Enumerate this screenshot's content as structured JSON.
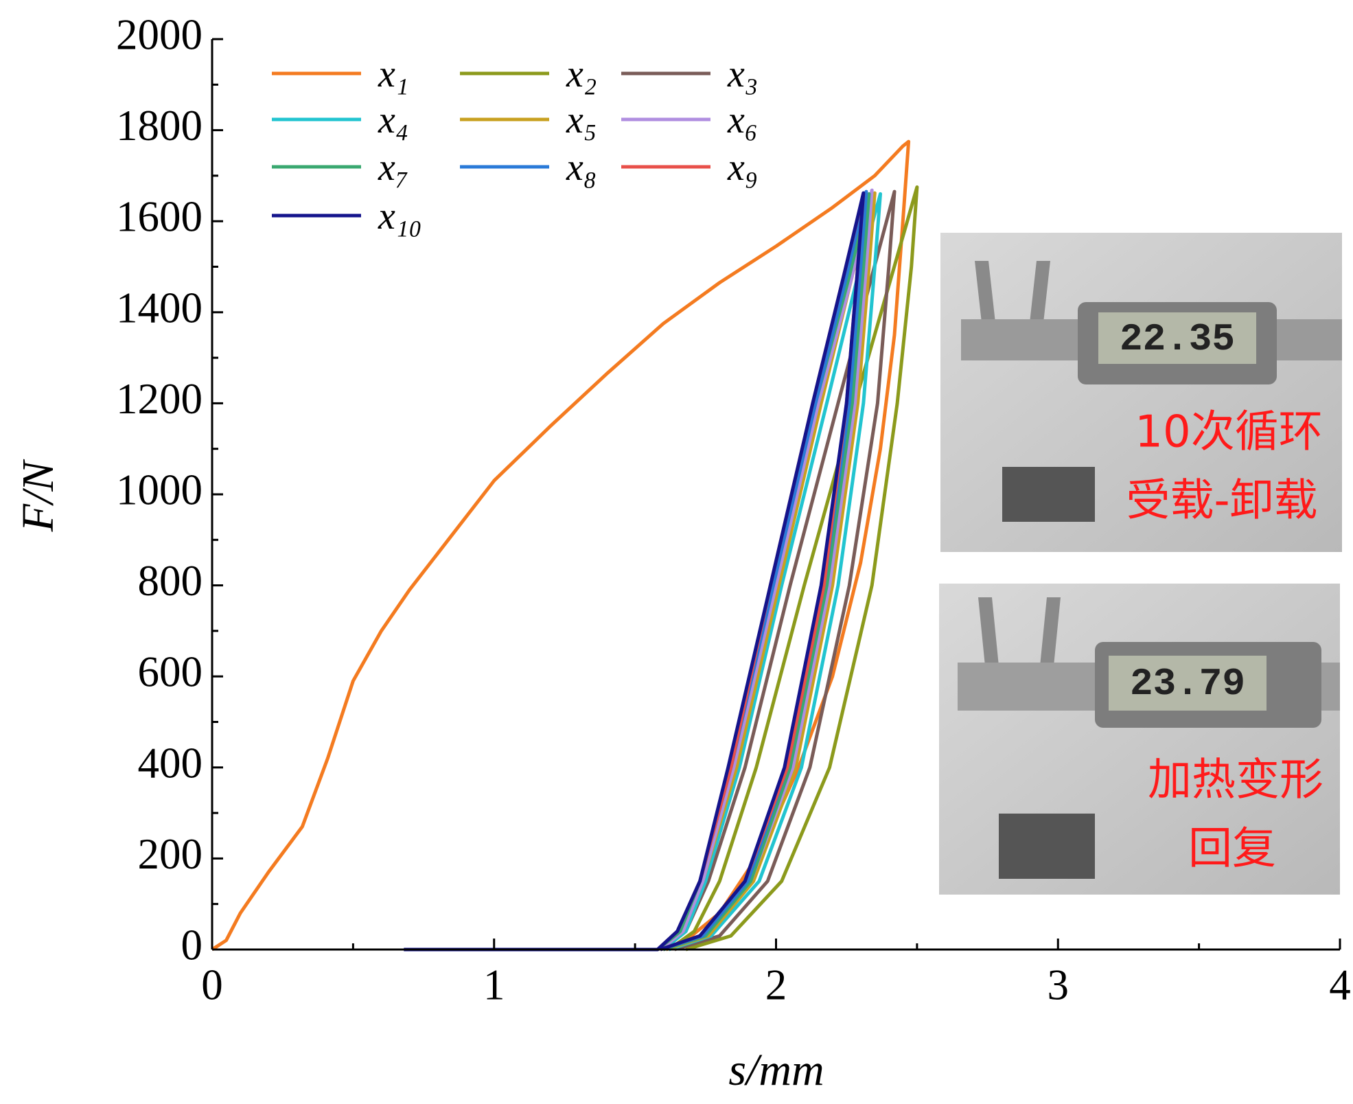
{
  "chart_data": {
    "type": "line",
    "xlabel": "s/mm",
    "ylabel": "F/N",
    "xlim": [
      0,
      4
    ],
    "xticks": [
      0,
      1,
      2,
      3,
      4
    ],
    "ylim": [
      0,
      2000
    ],
    "yticks": [
      0,
      200,
      400,
      600,
      800,
      1000,
      1200,
      1400,
      1600,
      1800,
      2000
    ],
    "legend": "upper-left",
    "series": [
      {
        "name": "x₁",
        "color": "#f47b20",
        "x": [
          0,
          0.05,
          0.1,
          0.2,
          0.32,
          0.41,
          0.5,
          0.6,
          0.7,
          0.85,
          1.0,
          1.2,
          1.4,
          1.6,
          1.8,
          2.0,
          2.2,
          2.35,
          2.45,
          2.47,
          2.45,
          2.42,
          2.37,
          2.3,
          2.2,
          2.08,
          1.95,
          1.8,
          1.68,
          1.6
        ],
        "values": [
          0,
          20,
          80,
          170,
          270,
          420,
          590,
          700,
          790,
          910,
          1030,
          1150,
          1265,
          1375,
          1465,
          1545,
          1630,
          1700,
          1765,
          1775,
          1600,
          1350,
          1100,
          850,
          600,
          400,
          220,
          80,
          20,
          0
        ]
      },
      {
        "name": "x₂",
        "color": "#8c9a1c",
        "x": [
          1.62,
          1.71,
          1.8,
          1.93,
          2.1,
          2.28,
          2.41,
          2.5,
          2.48,
          2.43,
          2.34,
          2.19,
          2.02,
          1.84,
          1.68
        ],
        "values": [
          0,
          40,
          150,
          400,
          800,
          1200,
          1480,
          1675,
          1500,
          1200,
          800,
          400,
          150,
          30,
          0
        ]
      },
      {
        "name": "x₃",
        "color": "#7a5c58",
        "x": [
          1.6,
          1.68,
          1.76,
          1.89,
          2.05,
          2.22,
          2.34,
          2.42,
          2.4,
          2.36,
          2.26,
          2.12,
          1.97,
          1.8,
          1.64
        ],
        "values": [
          0,
          40,
          150,
          400,
          800,
          1200,
          1480,
          1665,
          1500,
          1200,
          800,
          400,
          150,
          30,
          0
        ]
      },
      {
        "name": "x₄",
        "color": "#22c4d0",
        "x": [
          1.6,
          1.68,
          1.75,
          1.87,
          2.02,
          2.18,
          2.29,
          2.37,
          2.35,
          2.31,
          2.22,
          2.09,
          1.94,
          1.77,
          1.62
        ],
        "values": [
          0,
          40,
          150,
          400,
          800,
          1200,
          1480,
          1660,
          1500,
          1200,
          800,
          400,
          150,
          30,
          0
        ]
      },
      {
        "name": "x₅",
        "color": "#c8a020",
        "x": [
          1.59,
          1.67,
          1.74,
          1.86,
          2.01,
          2.16,
          2.27,
          2.35,
          2.33,
          2.29,
          2.2,
          2.07,
          1.92,
          1.76,
          1.61
        ],
        "values": [
          0,
          40,
          150,
          400,
          800,
          1200,
          1480,
          1662,
          1500,
          1200,
          800,
          400,
          150,
          30,
          0
        ]
      },
      {
        "name": "x₆",
        "color": "#b08ee0",
        "x": [
          1.59,
          1.67,
          1.74,
          1.85,
          2.0,
          2.15,
          2.27,
          2.34,
          2.32,
          2.28,
          2.19,
          2.06,
          1.91,
          1.75,
          1.6
        ],
        "values": [
          0,
          40,
          150,
          400,
          800,
          1200,
          1480,
          1668,
          1500,
          1200,
          800,
          400,
          150,
          30,
          0
        ]
      },
      {
        "name": "x₇",
        "color": "#3aa870",
        "x": [
          1.58,
          1.66,
          1.73,
          1.84,
          1.99,
          2.14,
          2.26,
          2.33,
          2.31,
          2.27,
          2.18,
          2.05,
          1.91,
          1.75,
          1.6
        ],
        "values": [
          0,
          40,
          150,
          400,
          800,
          1200,
          1480,
          1660,
          1500,
          1200,
          800,
          400,
          150,
          30,
          0
        ]
      },
      {
        "name": "x₈",
        "color": "#2a7ad8",
        "x": [
          1.58,
          1.65,
          1.73,
          1.84,
          1.99,
          2.14,
          2.25,
          2.32,
          2.3,
          2.26,
          2.17,
          2.04,
          1.9,
          1.74,
          1.59
        ],
        "values": [
          0,
          40,
          150,
          400,
          800,
          1200,
          1480,
          1665,
          1500,
          1200,
          800,
          400,
          150,
          30,
          0
        ]
      },
      {
        "name": "x₉",
        "color": "#e8504a",
        "x": [
          1.58,
          1.65,
          1.73,
          1.84,
          1.98,
          2.13,
          2.24,
          2.31,
          2.29,
          2.25,
          2.17,
          2.04,
          1.89,
          1.73,
          1.59
        ],
        "values": [
          0,
          40,
          150,
          400,
          800,
          1200,
          1480,
          1660,
          1500,
          1200,
          800,
          400,
          150,
          30,
          0
        ]
      },
      {
        "name": "x₁₀",
        "color": "#14148c",
        "x": [
          0.68,
          1.0,
          1.58,
          1.65,
          1.73,
          1.83,
          1.98,
          2.13,
          2.24,
          2.31,
          2.29,
          2.25,
          2.16,
          2.03,
          1.89,
          1.73,
          1.59
        ],
        "values": [
          0,
          0,
          0,
          40,
          150,
          400,
          800,
          1200,
          1480,
          1662,
          1500,
          1200,
          800,
          400,
          150,
          30,
          0
        ]
      }
    ],
    "annotations": [
      {
        "reading": "22.35",
        "lines": [
          "10次循环",
          "受载-卸载"
        ]
      },
      {
        "reading": "23.79",
        "lines": [
          "加热变形",
          "回复"
        ]
      }
    ]
  }
}
